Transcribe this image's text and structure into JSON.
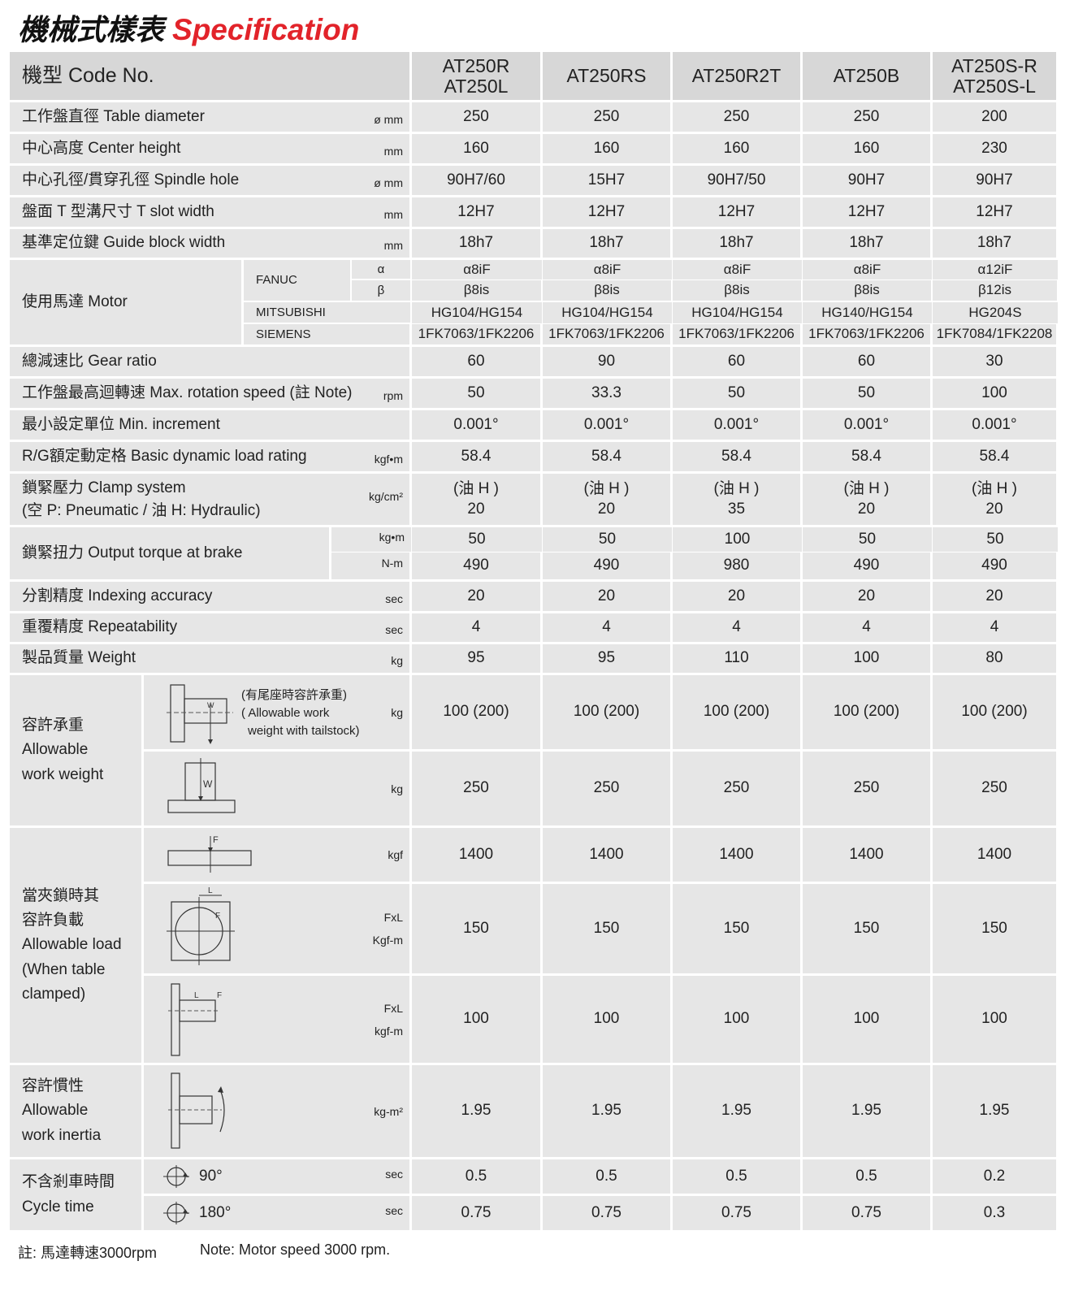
{
  "title": {
    "zh": "機械式樣表",
    "en": "Specification"
  },
  "header": {
    "label": "機型 Code No.",
    "models": [
      [
        "AT250R",
        "AT250L"
      ],
      [
        "AT250RS"
      ],
      [
        "AT250R2T"
      ],
      [
        "AT250B"
      ],
      [
        "AT250S-R",
        "AT250S-L"
      ]
    ]
  },
  "rows_top": [
    {
      "label": "工作盤直徑 Table diameter",
      "unit": "ø mm",
      "values": [
        "250",
        "250",
        "250",
        "250",
        "200"
      ]
    },
    {
      "label": "中心高度 Center height",
      "unit": "mm",
      "values": [
        "160",
        "160",
        "160",
        "160",
        "230"
      ]
    },
    {
      "label": "中心孔徑/貫穿孔徑 Spindle hole",
      "unit": "ø mm",
      "values": [
        "90H7/60",
        "15H7",
        "90H7/50",
        "90H7",
        "90H7"
      ]
    },
    {
      "label": "盤面 T 型溝尺寸 T slot width",
      "unit": "mm",
      "values": [
        "12H7",
        "12H7",
        "12H7",
        "12H7",
        "12H7"
      ]
    },
    {
      "label": "基準定位鍵 Guide block width",
      "unit": "mm",
      "values": [
        "18h7",
        "18h7",
        "18h7",
        "18h7",
        "18h7"
      ]
    }
  ],
  "motor": {
    "label": "使用馬達 Motor",
    "fanuc": {
      "brand": "FANUC",
      "alpha": {
        "symbol": "α",
        "values": [
          "α8iF",
          "α8iF",
          "α8iF",
          "α8iF",
          "α12iF"
        ]
      },
      "beta": {
        "symbol": "β",
        "values": [
          "β8is",
          "β8is",
          "β8is",
          "β8is",
          "β12is"
        ]
      }
    },
    "mitsubishi": {
      "brand": "MITSUBISHI",
      "values": [
        "HG104/HG154",
        "HG104/HG154",
        "HG104/HG154",
        "HG140/HG154",
        "HG204S"
      ]
    },
    "siemens": {
      "brand": "SIEMENS",
      "values": [
        "1FK7063/1FK2206",
        "1FK7063/1FK2206",
        "1FK7063/1FK2206",
        "1FK7063/1FK2206",
        "1FK7084/1FK2208"
      ]
    }
  },
  "rows_mid": [
    {
      "label": "總減速比 Gear ratio",
      "unit": "",
      "values": [
        "60",
        "90",
        "60",
        "60",
        "30"
      ]
    },
    {
      "label": "工作盤最高迴轉速 Max. rotation speed (註 Note)",
      "unit": "rpm",
      "values": [
        "50",
        "33.3",
        "50",
        "50",
        "100"
      ]
    },
    {
      "label": "最小設定單位 Min. increment",
      "unit": "",
      "values": [
        "0.001°",
        "0.001°",
        "0.001°",
        "0.001°",
        "0.001°"
      ]
    },
    {
      "label": "R/G額定動定格 Basic dynamic load rating",
      "unit": "kgf•m",
      "values": [
        "58.4",
        "58.4",
        "58.4",
        "58.4",
        "58.4"
      ]
    }
  ],
  "clamp": {
    "label_lines": [
      "鎖緊壓力  Clamp system",
      "(空 P: Pneumatic / 油 H: Hydraulic)"
    ],
    "unit": "kg/cm²",
    "values": [
      [
        "(油 H )",
        "20"
      ],
      [
        "(油 H )",
        "20"
      ],
      [
        "(油 H )",
        "35"
      ],
      [
        "(油 H )",
        "20"
      ],
      [
        "(油 H )",
        "20"
      ]
    ]
  },
  "torque": {
    "label": "鎖緊扭力 Output torque at brake",
    "unit_kgm": "kg•m",
    "unit_nm": "N-m",
    "values_kgm": [
      "50",
      "50",
      "100",
      "50",
      "50"
    ],
    "values_nm": [
      "490",
      "490",
      "980",
      "490",
      "490"
    ]
  },
  "rows_low": [
    {
      "label": "分割精度 Indexing accuracy",
      "unit": "sec",
      "values": [
        "20",
        "20",
        "20",
        "20",
        "20"
      ]
    },
    {
      "label": "重覆精度 Repeatability",
      "unit": "sec",
      "values": [
        "4",
        "4",
        "4",
        "4",
        "4"
      ]
    },
    {
      "label": "製品質量 Weight",
      "unit": "kg",
      "values": [
        "95",
        "95",
        "110",
        "100",
        "80"
      ]
    }
  ],
  "work_weight": {
    "label_lines": [
      "容許承重",
      "Allowable",
      "work weight"
    ],
    "tailstock": {
      "note_lines": [
        "(有尾座時容許承重)",
        "( Allowable work",
        "weight with tailstock)"
      ],
      "unit": "kg",
      "values": [
        "100 (200)",
        "100 (200)",
        "100 (200)",
        "100 (200)",
        "100 (200)"
      ],
      "diagram_label": "W"
    },
    "normal": {
      "unit": "kg",
      "values": [
        "250",
        "250",
        "250",
        "250",
        "250"
      ],
      "diagram_label": "W"
    }
  },
  "allowable_load": {
    "label_lines": [
      "當夾鎖時其",
      "容許負載",
      "Allowable load",
      "(When table",
      "clamped)"
    ],
    "axial": {
      "unit": "kgf",
      "values": [
        "1400",
        "1400",
        "1400",
        "1400",
        "1400"
      ],
      "diagram_label": "F"
    },
    "moment": {
      "unit_lines": [
        "FxL",
        "Kgf-m"
      ],
      "values": [
        "150",
        "150",
        "150",
        "150",
        "150"
      ],
      "diagram_labels": [
        "L",
        "F"
      ]
    },
    "side": {
      "unit_lines": [
        "FxL",
        "kgf-m"
      ],
      "values": [
        "100",
        "100",
        "100",
        "100",
        "100"
      ],
      "diagram_labels": [
        "L",
        "F"
      ]
    }
  },
  "inertia": {
    "label_lines": [
      "容許慣性",
      "Allowable",
      "work inertia"
    ],
    "unit": "kg-m²",
    "values": [
      "1.95",
      "1.95",
      "1.95",
      "1.95",
      "1.95"
    ]
  },
  "cycle_time": {
    "label_lines": [
      "不含剎車時間",
      "Cycle time"
    ],
    "rows": [
      {
        "angle": "90°",
        "unit": "sec",
        "values": [
          "0.5",
          "0.5",
          "0.5",
          "0.5",
          "0.2"
        ]
      },
      {
        "angle": "180°",
        "unit": "sec",
        "values": [
          "0.75",
          "0.75",
          "0.75",
          "0.75",
          "0.3"
        ]
      }
    ]
  },
  "footnote": {
    "zh": "註: 馬達轉速3000rpm",
    "en": "Note: Motor speed 3000 rpm."
  },
  "colors": {
    "accent_red": "#e2232a",
    "cell_bg": "#e6e6e6",
    "header_bg": "#d7d7d7"
  }
}
